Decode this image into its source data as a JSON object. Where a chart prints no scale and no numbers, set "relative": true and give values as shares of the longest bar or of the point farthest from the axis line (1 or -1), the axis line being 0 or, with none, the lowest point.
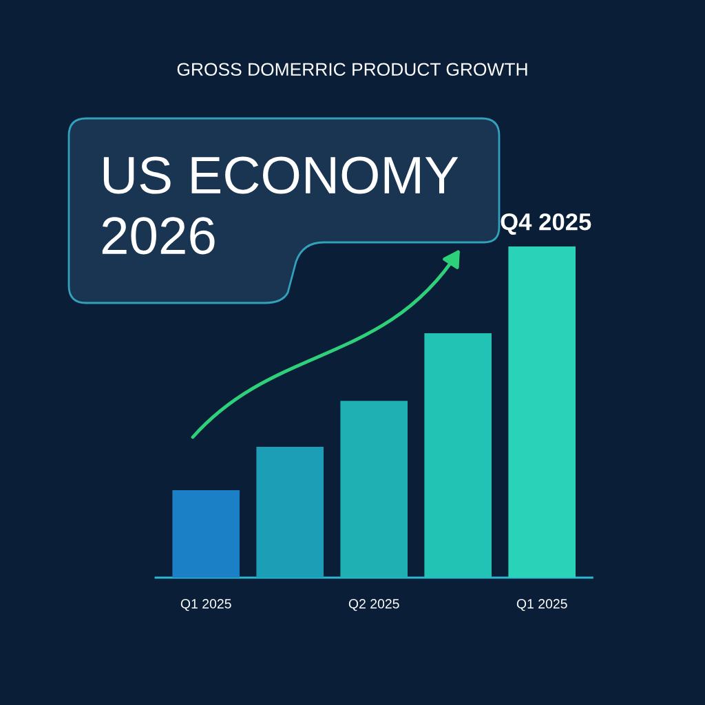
{
  "chart_data": {
    "type": "bar",
    "title": "US ECONOMY\n2026",
    "subtitle": "GROSS DOMERRIC PRODUCT GROWTH",
    "categories": [
      "Q1 2025",
      null,
      "Q2 2025",
      null,
      "Q1 2025"
    ],
    "values": [
      0.264,
      0.395,
      0.534,
      0.738,
      1
    ],
    "colors": [
      "#1b80c6",
      "#1c9eb6",
      "#1fb0b4",
      "#22c2b4",
      "#2ad2b8"
    ],
    "relative": true,
    "annotations": [
      "Q4 2025"
    ]
  }
}
